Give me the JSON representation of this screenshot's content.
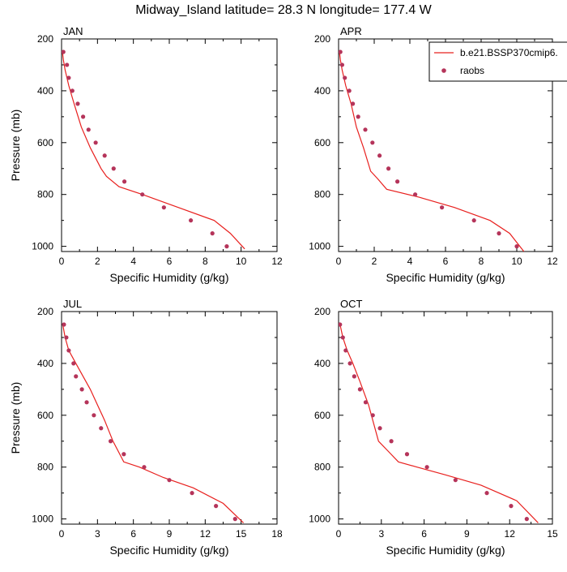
{
  "figure": {
    "title": "Midway_Island  latitude= 28.3 N longitude= 177.4 W"
  },
  "legend": {
    "model_label": "b.e21.BSSP370cmip6.",
    "obs_label": "raobs",
    "model_color": "#e8201e",
    "obs_color": "#b5345a"
  },
  "chart_data": [
    {
      "type": "line",
      "panel": "JAN",
      "xlabel": "Specific Humidity (g/kg)",
      "ylabel": "Pressure (mb)",
      "xlim": [
        0,
        12
      ],
      "ylim": [
        1020,
        200
      ],
      "xticks": [
        0,
        2,
        4,
        6,
        8,
        10,
        12
      ],
      "yticks": [
        200,
        400,
        600,
        800,
        1000
      ],
      "series": [
        {
          "name": "b.e21.BSSP370cmip6.",
          "kind": "line",
          "x": [
            0.05,
            0.1,
            0.2,
            0.4,
            0.7,
            1.1,
            1.6,
            2.2,
            2.5,
            3.2,
            4.5,
            6.5,
            8.5,
            9.4,
            10.2
          ],
          "y": [
            250,
            280,
            320,
            380,
            450,
            540,
            620,
            700,
            730,
            770,
            800,
            850,
            900,
            950,
            1010
          ]
        },
        {
          "name": "raobs",
          "kind": "scatter",
          "x": [
            0.1,
            0.3,
            0.4,
            0.6,
            0.9,
            1.2,
            1.5,
            1.9,
            2.4,
            2.9,
            3.5,
            4.5,
            5.7,
            7.2,
            8.4,
            9.2
          ],
          "y": [
            250,
            300,
            350,
            400,
            450,
            500,
            550,
            600,
            650,
            700,
            750,
            800,
            850,
            900,
            950,
            1000
          ]
        }
      ]
    },
    {
      "type": "line",
      "panel": "APR",
      "xlabel": "Specific Humidity (g/kg)",
      "ylabel": "",
      "xlim": [
        0,
        12
      ],
      "ylim": [
        1020,
        200
      ],
      "xticks": [
        0,
        2,
        4,
        6,
        8,
        10,
        12
      ],
      "yticks": [
        200,
        400,
        600,
        800,
        1000
      ],
      "series": [
        {
          "name": "b.e21.BSSP370cmip6.",
          "kind": "line",
          "x": [
            0.05,
            0.1,
            0.2,
            0.4,
            0.7,
            1.0,
            1.4,
            1.8,
            2.2,
            2.7,
            4.5,
            6.5,
            8.5,
            9.6,
            10.4
          ],
          "y": [
            250,
            280,
            320,
            380,
            450,
            540,
            620,
            710,
            740,
            780,
            810,
            850,
            900,
            950,
            1020
          ]
        },
        {
          "name": "raobs",
          "kind": "scatter",
          "x": [
            0.1,
            0.2,
            0.35,
            0.6,
            0.8,
            1.1,
            1.5,
            1.9,
            2.3,
            2.8,
            3.3,
            4.3,
            5.8,
            7.6,
            9.0,
            10.0
          ],
          "y": [
            250,
            300,
            350,
            400,
            450,
            500,
            550,
            600,
            650,
            700,
            750,
            800,
            850,
            900,
            950,
            1000
          ]
        }
      ]
    },
    {
      "type": "line",
      "panel": "JUL",
      "xlabel": "Specific Humidity (g/kg)",
      "ylabel": "Pressure (mb)",
      "xlim": [
        0,
        18
      ],
      "ylim": [
        1020,
        200
      ],
      "xticks": [
        0,
        3,
        6,
        9,
        12,
        15,
        18
      ],
      "yticks": [
        200,
        400,
        600,
        800,
        1000
      ],
      "series": [
        {
          "name": "b.e21.BSSP370cmip6.",
          "kind": "line",
          "x": [
            0.1,
            0.3,
            0.6,
            1.2,
            1.8,
            2.4,
            3.0,
            3.6,
            4.3,
            5.2,
            6.5,
            8.5,
            11.0,
            13.5,
            15.2
          ],
          "y": [
            250,
            300,
            350,
            400,
            450,
            500,
            560,
            620,
            700,
            780,
            800,
            840,
            880,
            940,
            1015
          ]
        },
        {
          "name": "raobs",
          "kind": "scatter",
          "x": [
            0.2,
            0.4,
            0.6,
            1.0,
            1.2,
            1.7,
            2.1,
            2.7,
            3.3,
            4.1,
            5.2,
            6.9,
            9.0,
            10.9,
            12.9,
            14.5
          ],
          "y": [
            250,
            300,
            350,
            400,
            450,
            500,
            550,
            600,
            650,
            700,
            750,
            800,
            850,
            900,
            950,
            1000
          ]
        }
      ]
    },
    {
      "type": "line",
      "panel": "OCT",
      "xlabel": "Specific Humidity (g/kg)",
      "ylabel": "",
      "xlim": [
        0,
        15
      ],
      "ylim": [
        1020,
        200
      ],
      "xticks": [
        0,
        3,
        6,
        9,
        12,
        15
      ],
      "yticks": [
        200,
        400,
        600,
        800,
        1000
      ],
      "series": [
        {
          "name": "b.e21.BSSP370cmip6.",
          "kind": "line",
          "x": [
            0.1,
            0.3,
            0.6,
            1.0,
            1.5,
            2.1,
            2.8,
            3.5,
            4.2,
            5.5,
            7.5,
            10.0,
            12.5,
            14.0
          ],
          "y": [
            250,
            300,
            350,
            400,
            470,
            560,
            700,
            740,
            780,
            800,
            830,
            870,
            930,
            1015
          ]
        },
        {
          "name": "raobs",
          "kind": "scatter",
          "x": [
            0.1,
            0.3,
            0.5,
            0.8,
            1.1,
            1.5,
            1.9,
            2.4,
            2.9,
            3.7,
            4.8,
            6.2,
            8.2,
            10.4,
            12.1,
            13.2
          ],
          "y": [
            250,
            300,
            350,
            400,
            450,
            500,
            550,
            600,
            650,
            700,
            750,
            800,
            850,
            900,
            950,
            1000
          ]
        }
      ]
    }
  ]
}
